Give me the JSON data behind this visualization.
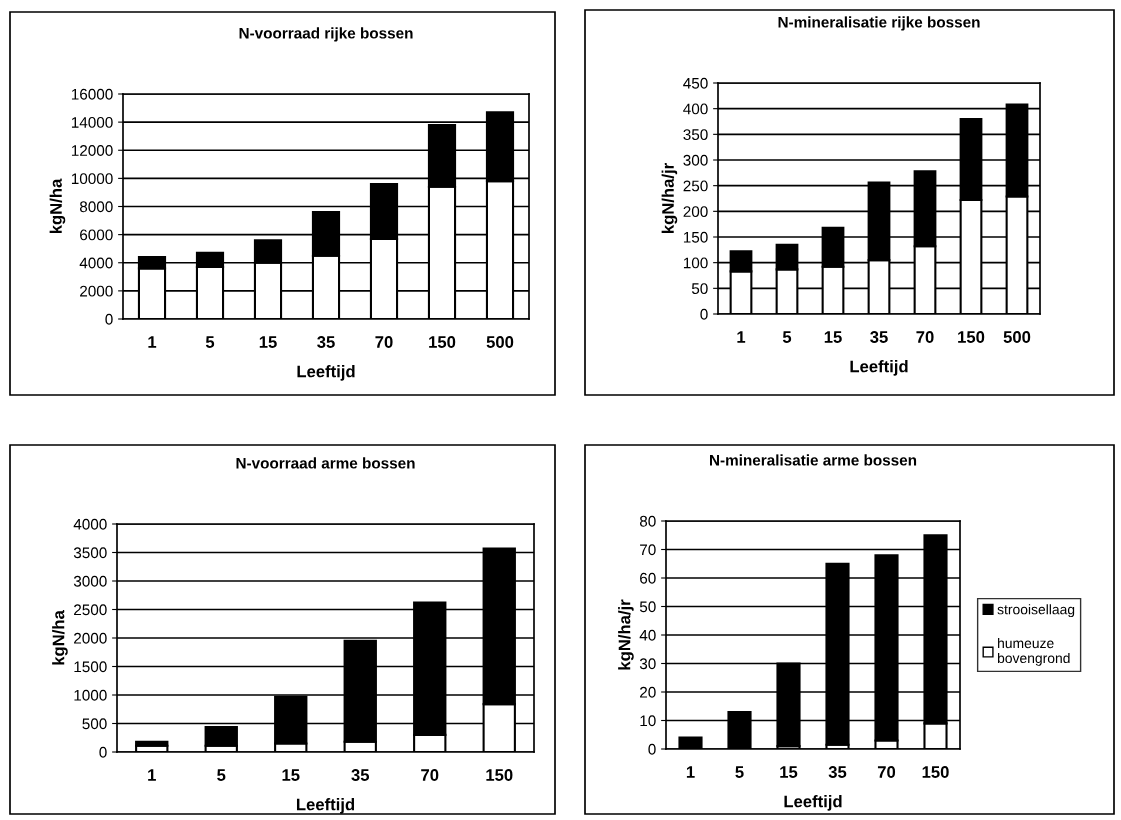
{
  "chart_data": [
    {
      "type": "bar",
      "stacked": true,
      "title": "N-voorraad rijke bossen",
      "xlabel": "Leeftijd",
      "ylabel": "kgN/ha",
      "categories": [
        "1",
        "5",
        "15",
        "35",
        "70",
        "150",
        "500"
      ],
      "ylim": [
        0,
        16000
      ],
      "yticks": [
        0,
        2000,
        4000,
        6000,
        8000,
        10000,
        12000,
        14000,
        16000
      ],
      "grid": "y",
      "series": [
        {
          "color": "#ffffff",
          "values": [
            3600,
            3700,
            4000,
            4500,
            5700,
            9400,
            9800
          ]
        },
        {
          "color": "#000000",
          "values": [
            800,
            1000,
            1600,
            3100,
            3900,
            4400,
            4900
          ]
        }
      ]
    },
    {
      "type": "bar",
      "stacked": true,
      "title": "N-mineralisatie rijke bossen",
      "xlabel": "Leeftijd",
      "ylabel": "kgN/ha/jr",
      "categories": [
        "1",
        "5",
        "15",
        "35",
        "70",
        "150",
        "500"
      ],
      "ylim": [
        0,
        450
      ],
      "yticks": [
        0,
        50,
        100,
        150,
        200,
        250,
        300,
        350,
        400,
        450
      ],
      "grid": "y",
      "series": [
        {
          "color": "#ffffff",
          "values": [
            83,
            87,
            92,
            105,
            132,
            222,
            229
          ]
        },
        {
          "color": "#000000",
          "values": [
            39,
            48,
            76,
            151,
            146,
            158,
            179
          ]
        }
      ]
    },
    {
      "type": "bar",
      "stacked": true,
      "title": "N-voorraad arme bossen",
      "xlabel": "Leeftijd",
      "ylabel": "kgN/ha",
      "categories": [
        "1",
        "5",
        "15",
        "35",
        "70",
        "150"
      ],
      "ylim": [
        0,
        4000
      ],
      "yticks": [
        0,
        500,
        1000,
        1500,
        2000,
        2500,
        3000,
        3500,
        4000
      ],
      "grid": "y",
      "series": [
        {
          "color": "#ffffff",
          "values": [
            110,
            110,
            150,
            180,
            300,
            840
          ]
        },
        {
          "color": "#000000",
          "values": [
            70,
            330,
            820,
            1770,
            2320,
            2730
          ]
        }
      ]
    },
    {
      "type": "bar",
      "stacked": true,
      "title": "N-mineralisatie arme bossen",
      "xlabel": "Leeftijd",
      "ylabel": "kgN/ha/jr",
      "categories": [
        "1",
        "5",
        "15",
        "35",
        "70",
        "150"
      ],
      "ylim": [
        0,
        80
      ],
      "yticks": [
        0,
        10,
        20,
        30,
        40,
        50,
        60,
        70,
        80
      ],
      "grid": "y",
      "legend": "right",
      "series": [
        {
          "name": "humeuze\nbovengrond",
          "color": "#ffffff",
          "values": [
            null,
            null,
            1,
            1.5,
            3,
            9
          ]
        },
        {
          "name": "strooisellaag",
          "color": "#000000",
          "values": [
            4,
            13,
            29,
            63.5,
            65,
            66
          ]
        }
      ]
    }
  ]
}
